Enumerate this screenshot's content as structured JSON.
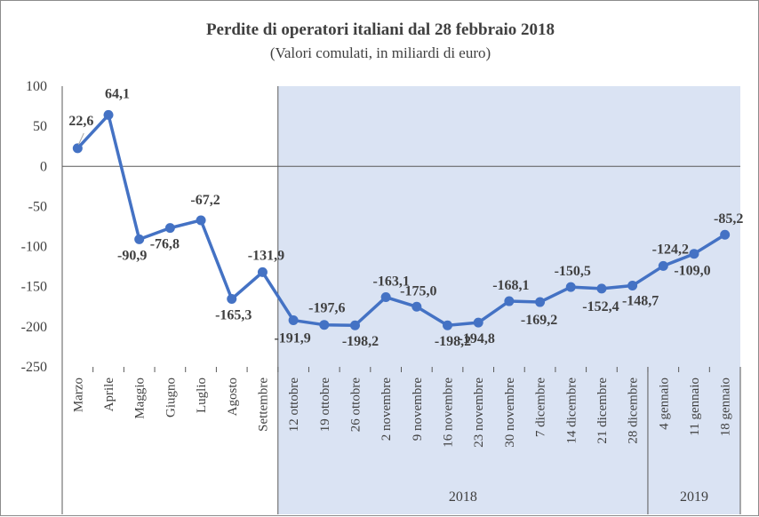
{
  "chart_data": {
    "type": "line",
    "title": "Perdite di operatori italiani  dal 28 febbraio 2018",
    "subtitle": "(Valori comulati, in miliardi di euro)",
    "categories": [
      "Marzo",
      "Aprile",
      "Maggio",
      "Giugno",
      "Luglio",
      "Agosto",
      "Settembre",
      "12 ottobre",
      "19 ottobre",
      "26 ottobre",
      "2 novembre",
      "9 novembre",
      "16 novembre",
      "23 novembre",
      "30 novembre",
      "7 dicembre",
      "14 dicembre",
      "21 dicembre",
      "28 dicembre",
      "4 gennaio",
      "11 gennaio",
      "18 gennaio"
    ],
    "series": [
      {
        "values": [
          22.6,
          64.1,
          -90.9,
          -76.8,
          -67.2,
          -165.3,
          -131.9,
          -191.9,
          -197.6,
          -198.2,
          -163.1,
          -175.0,
          -198.2,
          -194.8,
          -168.1,
          -169.2,
          -150.5,
          -152.4,
          -148.7,
          -124.2,
          -109.0,
          -85.2
        ],
        "labels": [
          "22,6",
          "64,1",
          "-90,9",
          "-76,8",
          "-67,2",
          "-165,3",
          "-131,9",
          "-191,9",
          "-197,6",
          "-198,2",
          "-163,1",
          "-175,0",
          "-198,2",
          "-194,8",
          "-168,1",
          "-169,2",
          "-150,5",
          "-152,4",
          "-148,7",
          "-124,2",
          "-109,0",
          "-85,2"
        ],
        "color": "#4472c4"
      }
    ],
    "ylim": [
      -250,
      100
    ],
    "yticks": [
      100,
      50,
      0,
      -50,
      -100,
      -150,
      -200,
      -250
    ],
    "ytick_labels": [
      "100",
      "50",
      "0",
      "-50",
      "-100",
      "-150",
      "-200",
      "-250"
    ],
    "groups": [
      {
        "label": "2018",
        "from": "12 ottobre",
        "to": "28 dicembre"
      },
      {
        "label": "2019",
        "from": "4 gennaio",
        "to": "18 gennaio"
      }
    ],
    "shaded_from": "12 ottobre",
    "colors": {
      "shade": "#dae3f3",
      "line": "#4472c4",
      "axis": "#595959"
    },
    "grid": false,
    "legend": "none"
  }
}
